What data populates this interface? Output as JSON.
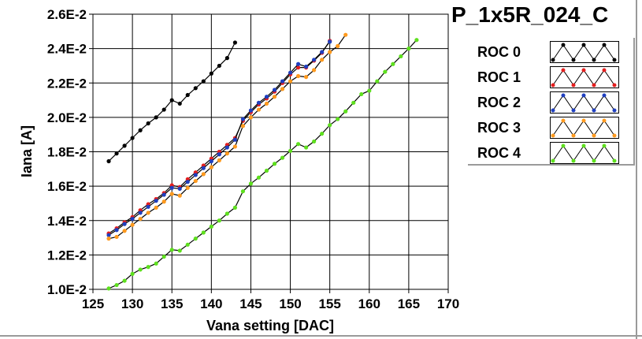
{
  "chart_data": {
    "type": "line",
    "title": "P_1x5R_024_C",
    "xlabel": "Vana setting [DAC]",
    "ylabel": "Iana [A]",
    "xlim": [
      125,
      170
    ],
    "ylim": [
      0.01,
      0.026
    ],
    "x_ticks": [
      125,
      130,
      135,
      140,
      145,
      150,
      155,
      160,
      165,
      170
    ],
    "x_tick_labels": [
      "125",
      "130",
      "135",
      "140",
      "145",
      "150",
      "155",
      "160",
      "165",
      "170"
    ],
    "y_ticks": [
      0.01,
      0.012,
      0.014,
      0.016,
      0.018,
      0.02,
      0.022,
      0.024,
      0.026
    ],
    "y_tick_labels": [
      "1.0E-2",
      "1.2E-2",
      "1.4E-2",
      "1.6E-2",
      "1.8E-2",
      "2.0E-2",
      "2.2E-2",
      "2.4E-2",
      "2.6E-2"
    ],
    "grid": true,
    "legend_position": "right",
    "series": [
      {
        "name": "ROC 0",
        "color": "#000000",
        "x": [
          127,
          128,
          129,
          130,
          131,
          132,
          133,
          134,
          135,
          136,
          137,
          138,
          139,
          140,
          141,
          142,
          143
        ],
        "y": [
          0.01745,
          0.0179,
          0.01835,
          0.0188,
          0.01925,
          0.01965,
          0.02,
          0.02045,
          0.021,
          0.0208,
          0.0213,
          0.0217,
          0.0221,
          0.02255,
          0.023,
          0.02345,
          0.02435
        ]
      },
      {
        "name": "ROC 1",
        "color": "#e41e1e",
        "x": [
          127,
          128,
          129,
          130,
          131,
          132,
          133,
          134,
          135,
          136,
          137,
          138,
          139,
          140,
          141,
          142,
          143,
          144,
          145,
          146,
          147,
          148,
          149,
          150,
          151,
          152,
          153,
          154,
          155
        ],
        "y": [
          0.01325,
          0.01355,
          0.0139,
          0.0142,
          0.0146,
          0.01495,
          0.01525,
          0.0156,
          0.01605,
          0.01595,
          0.0164,
          0.0168,
          0.0172,
          0.0176,
          0.018,
          0.0184,
          0.0188,
          0.0198,
          0.0203,
          0.02075,
          0.0211,
          0.0215,
          0.022,
          0.0225,
          0.0229,
          0.0229,
          0.0233,
          0.02375,
          0.02445
        ]
      },
      {
        "name": "ROC 2",
        "color": "#1f3fbf",
        "x": [
          127,
          128,
          129,
          130,
          131,
          132,
          133,
          134,
          135,
          136,
          137,
          138,
          139,
          140,
          141,
          142,
          143,
          144,
          145,
          146,
          147,
          148,
          149,
          150,
          151,
          152,
          153,
          154,
          155
        ],
        "y": [
          0.01315,
          0.01345,
          0.0138,
          0.0141,
          0.01445,
          0.0148,
          0.01515,
          0.0155,
          0.0159,
          0.01585,
          0.01625,
          0.01665,
          0.01705,
          0.01745,
          0.01785,
          0.01825,
          0.0187,
          0.0199,
          0.0204,
          0.02085,
          0.0212,
          0.0216,
          0.0221,
          0.0226,
          0.0231,
          0.02295,
          0.02335,
          0.0238,
          0.0244
        ]
      },
      {
        "name": "ROC 3",
        "color": "#ff9a1e",
        "x": [
          127,
          128,
          129,
          130,
          131,
          132,
          133,
          134,
          135,
          136,
          137,
          138,
          139,
          140,
          141,
          142,
          143,
          144,
          145,
          146,
          147,
          148,
          149,
          150,
          151,
          152,
          153,
          154,
          155,
          156,
          157
        ],
        "y": [
          0.01295,
          0.01305,
          0.0134,
          0.01375,
          0.0141,
          0.01445,
          0.01475,
          0.0151,
          0.01555,
          0.01545,
          0.0159,
          0.0163,
          0.0167,
          0.0171,
          0.0175,
          0.0179,
          0.0183,
          0.0195,
          0.02,
          0.02045,
          0.0208,
          0.0212,
          0.02165,
          0.0221,
          0.0224,
          0.02235,
          0.02275,
          0.02335,
          0.0238,
          0.02415,
          0.0248
        ]
      },
      {
        "name": "ROC 4",
        "color": "#5ee01e",
        "x": [
          127,
          128,
          129,
          130,
          131,
          132,
          133,
          134,
          135,
          136,
          137,
          138,
          139,
          140,
          141,
          142,
          143,
          144,
          145,
          146,
          147,
          148,
          149,
          150,
          151,
          152,
          153,
          154,
          155,
          156,
          157,
          158,
          159,
          160,
          161,
          162,
          163,
          164,
          165,
          166
        ],
        "y": [
          0.01005,
          0.01025,
          0.0105,
          0.0109,
          0.01115,
          0.0113,
          0.0115,
          0.0119,
          0.0123,
          0.01225,
          0.0126,
          0.01295,
          0.0133,
          0.01365,
          0.014,
          0.0144,
          0.01475,
          0.0157,
          0.01615,
          0.0165,
          0.0169,
          0.0173,
          0.01765,
          0.01805,
          0.01845,
          0.01825,
          0.0186,
          0.01905,
          0.01955,
          0.0199,
          0.02035,
          0.02085,
          0.02135,
          0.02155,
          0.0221,
          0.02265,
          0.0231,
          0.02355,
          0.024,
          0.0245
        ]
      }
    ]
  }
}
